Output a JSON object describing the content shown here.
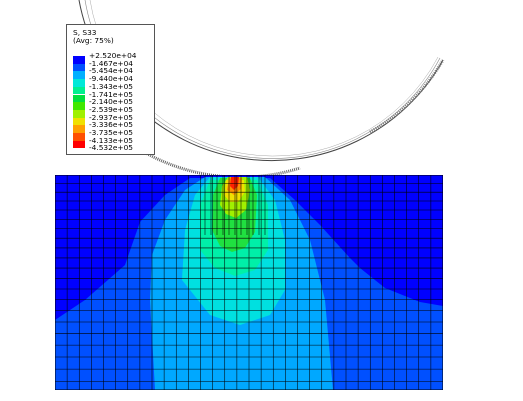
{
  "legend": {
    "title": "S, S33",
    "subtitle": "(Avg: 75%)",
    "levels": [
      {
        "label": "+2.520e+04",
        "color": "#0000ff"
      },
      {
        "label": "-1.467e+04",
        "color": "#0000ff"
      },
      {
        "label": "-5.454e+04",
        "color": "#0050ff"
      },
      {
        "label": "-9.440e+04",
        "color": "#00b0ff"
      },
      {
        "label": "-1.343e+05",
        "color": "#00e8d8"
      },
      {
        "label": "-1.741e+05",
        "color": "#00f090"
      },
      {
        "label": "-2.140e+05",
        "color": "#00e040"
      },
      {
        "label": "-2.539e+05",
        "color": "#40e800"
      },
      {
        "label": "-2.937e+05",
        "color": "#a0f000"
      },
      {
        "label": "-3.336e+05",
        "color": "#f0e000"
      },
      {
        "label": "-3.735e+05",
        "color": "#ffa000"
      },
      {
        "label": "-4.133e+05",
        "color": "#ff5000"
      },
      {
        "label": "-4.532e+05",
        "color": "#ff0000"
      }
    ]
  },
  "colors": {
    "background": "#ffffff",
    "mesh_line": "#000000",
    "indenter_outline": "#555555"
  }
}
